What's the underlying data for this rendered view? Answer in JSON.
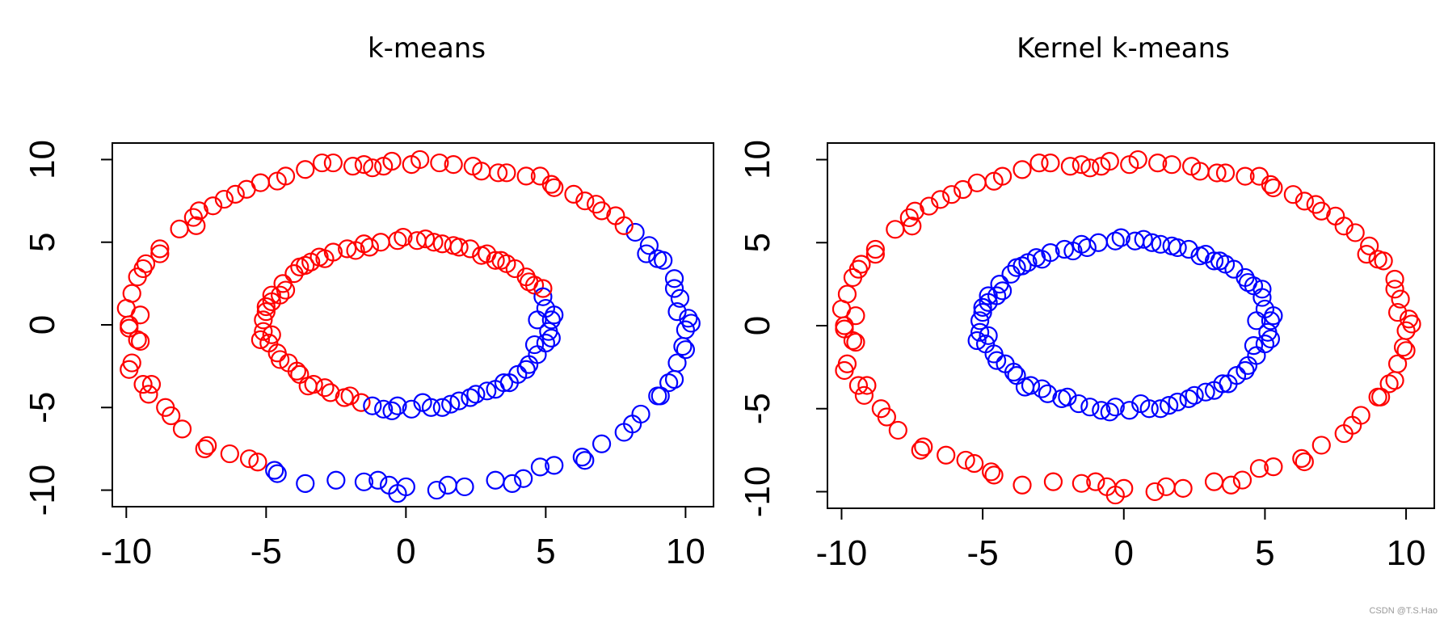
{
  "colors": {
    "red": "#ff0000",
    "blue": "#0000ff",
    "axis": "#000000"
  },
  "watermark": "CSDN @T.S.Hao",
  "chart_data": [
    {
      "type": "scatter",
      "title": "k-means",
      "xlabel": "",
      "ylabel": "",
      "xlim": [
        -10.5,
        11.0
      ],
      "ylim": [
        -11.0,
        11.0
      ],
      "xticks": [
        "-10",
        "-5",
        "0",
        "5",
        "10"
      ],
      "yticks": [
        "-10",
        "-5",
        "0",
        "5",
        "10"
      ],
      "grid": false,
      "marker": "open-circle",
      "series": [
        {
          "name": "cluster-red",
          "color": "#ff0000",
          "points": "kmeans_red"
        },
        {
          "name": "cluster-blue",
          "color": "#0000ff",
          "points": "kmeans_blue"
        }
      ],
      "description": "Two concentric rings (radius ~5 and ~10); k-means splits them by a diagonal line: upper-left part red, lower-right part blue."
    },
    {
      "type": "scatter",
      "title": "Kernel k-means",
      "xlabel": "",
      "ylabel": "",
      "xlim": [
        -10.5,
        11.0
      ],
      "ylim": [
        -11.0,
        11.0
      ],
      "xticks": [
        "-10",
        "-5",
        "0",
        "5",
        "10"
      ],
      "yticks": [
        "-10",
        "-5",
        "0",
        "5",
        "10"
      ],
      "grid": false,
      "marker": "open-circle",
      "series": [
        {
          "name": "cluster-red",
          "color": "#ff0000",
          "points": "outer_ring"
        },
        {
          "name": "cluster-blue",
          "color": "#0000ff",
          "points": "inner_ring"
        }
      ],
      "description": "Kernel k-means separates the rings: outer ring red, inner ring blue."
    }
  ],
  "rings": {
    "outer_ring": [
      [
        0.5,
        10.0
      ],
      [
        -0.5,
        9.9
      ],
      [
        1.2,
        9.8
      ],
      [
        -1.5,
        9.7
      ],
      [
        2.4,
        9.6
      ],
      [
        -2.6,
        9.8
      ],
      [
        3.3,
        9.2
      ],
      [
        -3.6,
        9.4
      ],
      [
        4.3,
        9.0
      ],
      [
        -4.3,
        9.0
      ],
      [
        5.2,
        8.5
      ],
      [
        -5.2,
        8.6
      ],
      [
        6.0,
        7.9
      ],
      [
        -6.1,
        7.9
      ],
      [
        6.8,
        7.3
      ],
      [
        -6.9,
        7.2
      ],
      [
        7.5,
        6.6
      ],
      [
        -7.6,
        6.5
      ],
      [
        8.2,
        5.6
      ],
      [
        -8.1,
        5.8
      ],
      [
        8.7,
        4.8
      ],
      [
        -8.8,
        4.6
      ],
      [
        9.2,
        3.9
      ],
      [
        -9.3,
        3.7
      ],
      [
        9.6,
        2.8
      ],
      [
        -9.6,
        2.9
      ],
      [
        9.8,
        1.6
      ],
      [
        -9.8,
        1.9
      ],
      [
        10.1,
        0.4
      ],
      [
        -10.0,
        1.0
      ],
      [
        10.0,
        -0.3
      ],
      [
        -9.9,
        -0.2
      ],
      [
        9.9,
        -1.3
      ],
      [
        -9.6,
        -0.9
      ],
      [
        9.7,
        -2.3
      ],
      [
        -9.8,
        -2.3
      ],
      [
        9.4,
        -3.5
      ],
      [
        -9.4,
        -3.6
      ],
      [
        9.1,
        -4.3
      ],
      [
        -9.2,
        -4.2
      ],
      [
        8.4,
        -5.4
      ],
      [
        -8.6,
        -5.0
      ],
      [
        7.8,
        -6.5
      ],
      [
        -8.0,
        -6.3
      ],
      [
        7.0,
        -7.2
      ],
      [
        -7.1,
        -7.3
      ],
      [
        6.3,
        -8.0
      ],
      [
        -6.3,
        -7.8
      ],
      [
        5.3,
        -8.5
      ],
      [
        -5.3,
        -8.3
      ],
      [
        4.2,
        -9.3
      ],
      [
        -4.6,
        -9.0
      ],
      [
        3.2,
        -9.4
      ],
      [
        -3.6,
        -9.6
      ],
      [
        2.1,
        -9.8
      ],
      [
        -2.5,
        -9.4
      ],
      [
        1.1,
        -10.0
      ],
      [
        -1.5,
        -9.5
      ],
      [
        0.0,
        -9.8
      ],
      [
        -0.3,
        -10.2
      ],
      [
        1.5,
        -9.7
      ],
      [
        -0.6,
        -9.7
      ],
      [
        3.8,
        -9.6
      ],
      [
        -1.0,
        -9.4
      ],
      [
        4.8,
        -8.6
      ],
      [
        -4.7,
        -8.8
      ],
      [
        6.4,
        -8.2
      ],
      [
        -5.6,
        -8.1
      ],
      [
        8.1,
        -6.0
      ],
      [
        -7.2,
        -7.5
      ],
      [
        9.0,
        -4.3
      ],
      [
        -8.4,
        -5.5
      ],
      [
        9.6,
        -3.3
      ],
      [
        -9.1,
        -3.6
      ],
      [
        10.0,
        -1.5
      ],
      [
        -9.9,
        -2.7
      ],
      [
        10.2,
        0.1
      ],
      [
        -9.5,
        -1.0
      ],
      [
        9.7,
        0.8
      ],
      [
        -9.5,
        0.6
      ],
      [
        9.6,
        2.2
      ],
      [
        -9.9,
        0.0
      ],
      [
        9.0,
        4.0
      ],
      [
        -9.4,
        3.4
      ],
      [
        8.6,
        4.3
      ],
      [
        -8.8,
        4.3
      ],
      [
        7.8,
        6.0
      ],
      [
        -7.5,
        6.0
      ],
      [
        7.0,
        6.9
      ],
      [
        -7.4,
        6.9
      ],
      [
        6.4,
        7.5
      ],
      [
        -6.5,
        7.6
      ],
      [
        5.3,
        8.3
      ],
      [
        -5.7,
        8.2
      ],
      [
        4.8,
        9.0
      ],
      [
        -4.6,
        8.7
      ],
      [
        2.7,
        9.3
      ],
      [
        -3.0,
        9.8
      ],
      [
        1.7,
        9.7
      ],
      [
        -1.2,
        9.5
      ],
      [
        0.2,
        9.7
      ],
      [
        -0.8,
        9.6
      ],
      [
        3.6,
        9.2
      ],
      [
        -1.9,
        9.6
      ]
    ],
    "inner_ring": [
      [
        0.4,
        5.1
      ],
      [
        -0.3,
        5.1
      ],
      [
        1.0,
        5.0
      ],
      [
        -0.9,
        5.0
      ],
      [
        1.7,
        4.8
      ],
      [
        -1.5,
        4.9
      ],
      [
        2.3,
        4.6
      ],
      [
        -2.1,
        4.6
      ],
      [
        2.9,
        4.3
      ],
      [
        -2.6,
        4.4
      ],
      [
        3.4,
        3.9
      ],
      [
        -3.1,
        4.1
      ],
      [
        3.9,
        3.4
      ],
      [
        -3.6,
        3.6
      ],
      [
        4.3,
        2.9
      ],
      [
        -4.0,
        3.1
      ],
      [
        4.6,
        2.4
      ],
      [
        -4.4,
        2.5
      ],
      [
        4.9,
        1.7
      ],
      [
        -4.8,
        1.8
      ],
      [
        5.0,
        1.0
      ],
      [
        -5.0,
        1.1
      ],
      [
        5.2,
        0.3
      ],
      [
        -5.1,
        0.3
      ],
      [
        5.1,
        -0.4
      ],
      [
        -5.1,
        -0.4
      ],
      [
        5.0,
        -1.1
      ],
      [
        -4.9,
        -1.1
      ],
      [
        4.7,
        -1.8
      ],
      [
        -4.6,
        -1.7
      ],
      [
        4.4,
        -2.4
      ],
      [
        -4.2,
        -2.3
      ],
      [
        4.0,
        -3.0
      ],
      [
        -3.8,
        -3.0
      ],
      [
        3.5,
        -3.5
      ],
      [
        -3.3,
        -3.6
      ],
      [
        2.9,
        -4.0
      ],
      [
        -2.7,
        -4.1
      ],
      [
        2.3,
        -4.4
      ],
      [
        -2.2,
        -4.4
      ],
      [
        1.6,
        -4.8
      ],
      [
        -1.6,
        -4.7
      ],
      [
        0.9,
        -5.0
      ],
      [
        -0.8,
        -5.1
      ],
      [
        0.2,
        -5.1
      ],
      [
        -0.3,
        -4.9
      ],
      [
        1.3,
        -5.0
      ],
      [
        -1.2,
        -4.9
      ],
      [
        2.5,
        -4.2
      ],
      [
        -2.9,
        -3.8
      ],
      [
        3.7,
        -3.5
      ],
      [
        -3.5,
        -3.7
      ],
      [
        4.3,
        -2.7
      ],
      [
        -4.5,
        -2.1
      ],
      [
        5.2,
        -0.8
      ],
      [
        -5.2,
        -0.9
      ],
      [
        5.3,
        0.6
      ],
      [
        -5.0,
        0.8
      ],
      [
        4.9,
        2.2
      ],
      [
        -4.8,
        1.4
      ],
      [
        4.4,
        2.6
      ],
      [
        -4.3,
        2.1
      ],
      [
        3.6,
        3.7
      ],
      [
        -3.8,
        3.5
      ],
      [
        2.7,
        4.2
      ],
      [
        -2.9,
        4.0
      ],
      [
        1.3,
        4.9
      ],
      [
        -1.3,
        4.7
      ],
      [
        0.7,
        5.2
      ],
      [
        -0.1,
        5.3
      ],
      [
        1.9,
        4.7
      ],
      [
        -1.8,
        4.5
      ],
      [
        3.2,
        3.9
      ],
      [
        -3.4,
        3.8
      ],
      [
        -4.5,
        1.8
      ],
      [
        4.7,
        0.3
      ],
      [
        -4.8,
        -0.6
      ],
      [
        4.6,
        -1.2
      ],
      [
        -3.9,
        -2.8
      ],
      [
        3.2,
        -3.9
      ],
      [
        -2.0,
        -4.3
      ],
      [
        1.9,
        -4.6
      ],
      [
        -0.5,
        -5.2
      ],
      [
        0.6,
        -4.7
      ]
    ]
  }
}
